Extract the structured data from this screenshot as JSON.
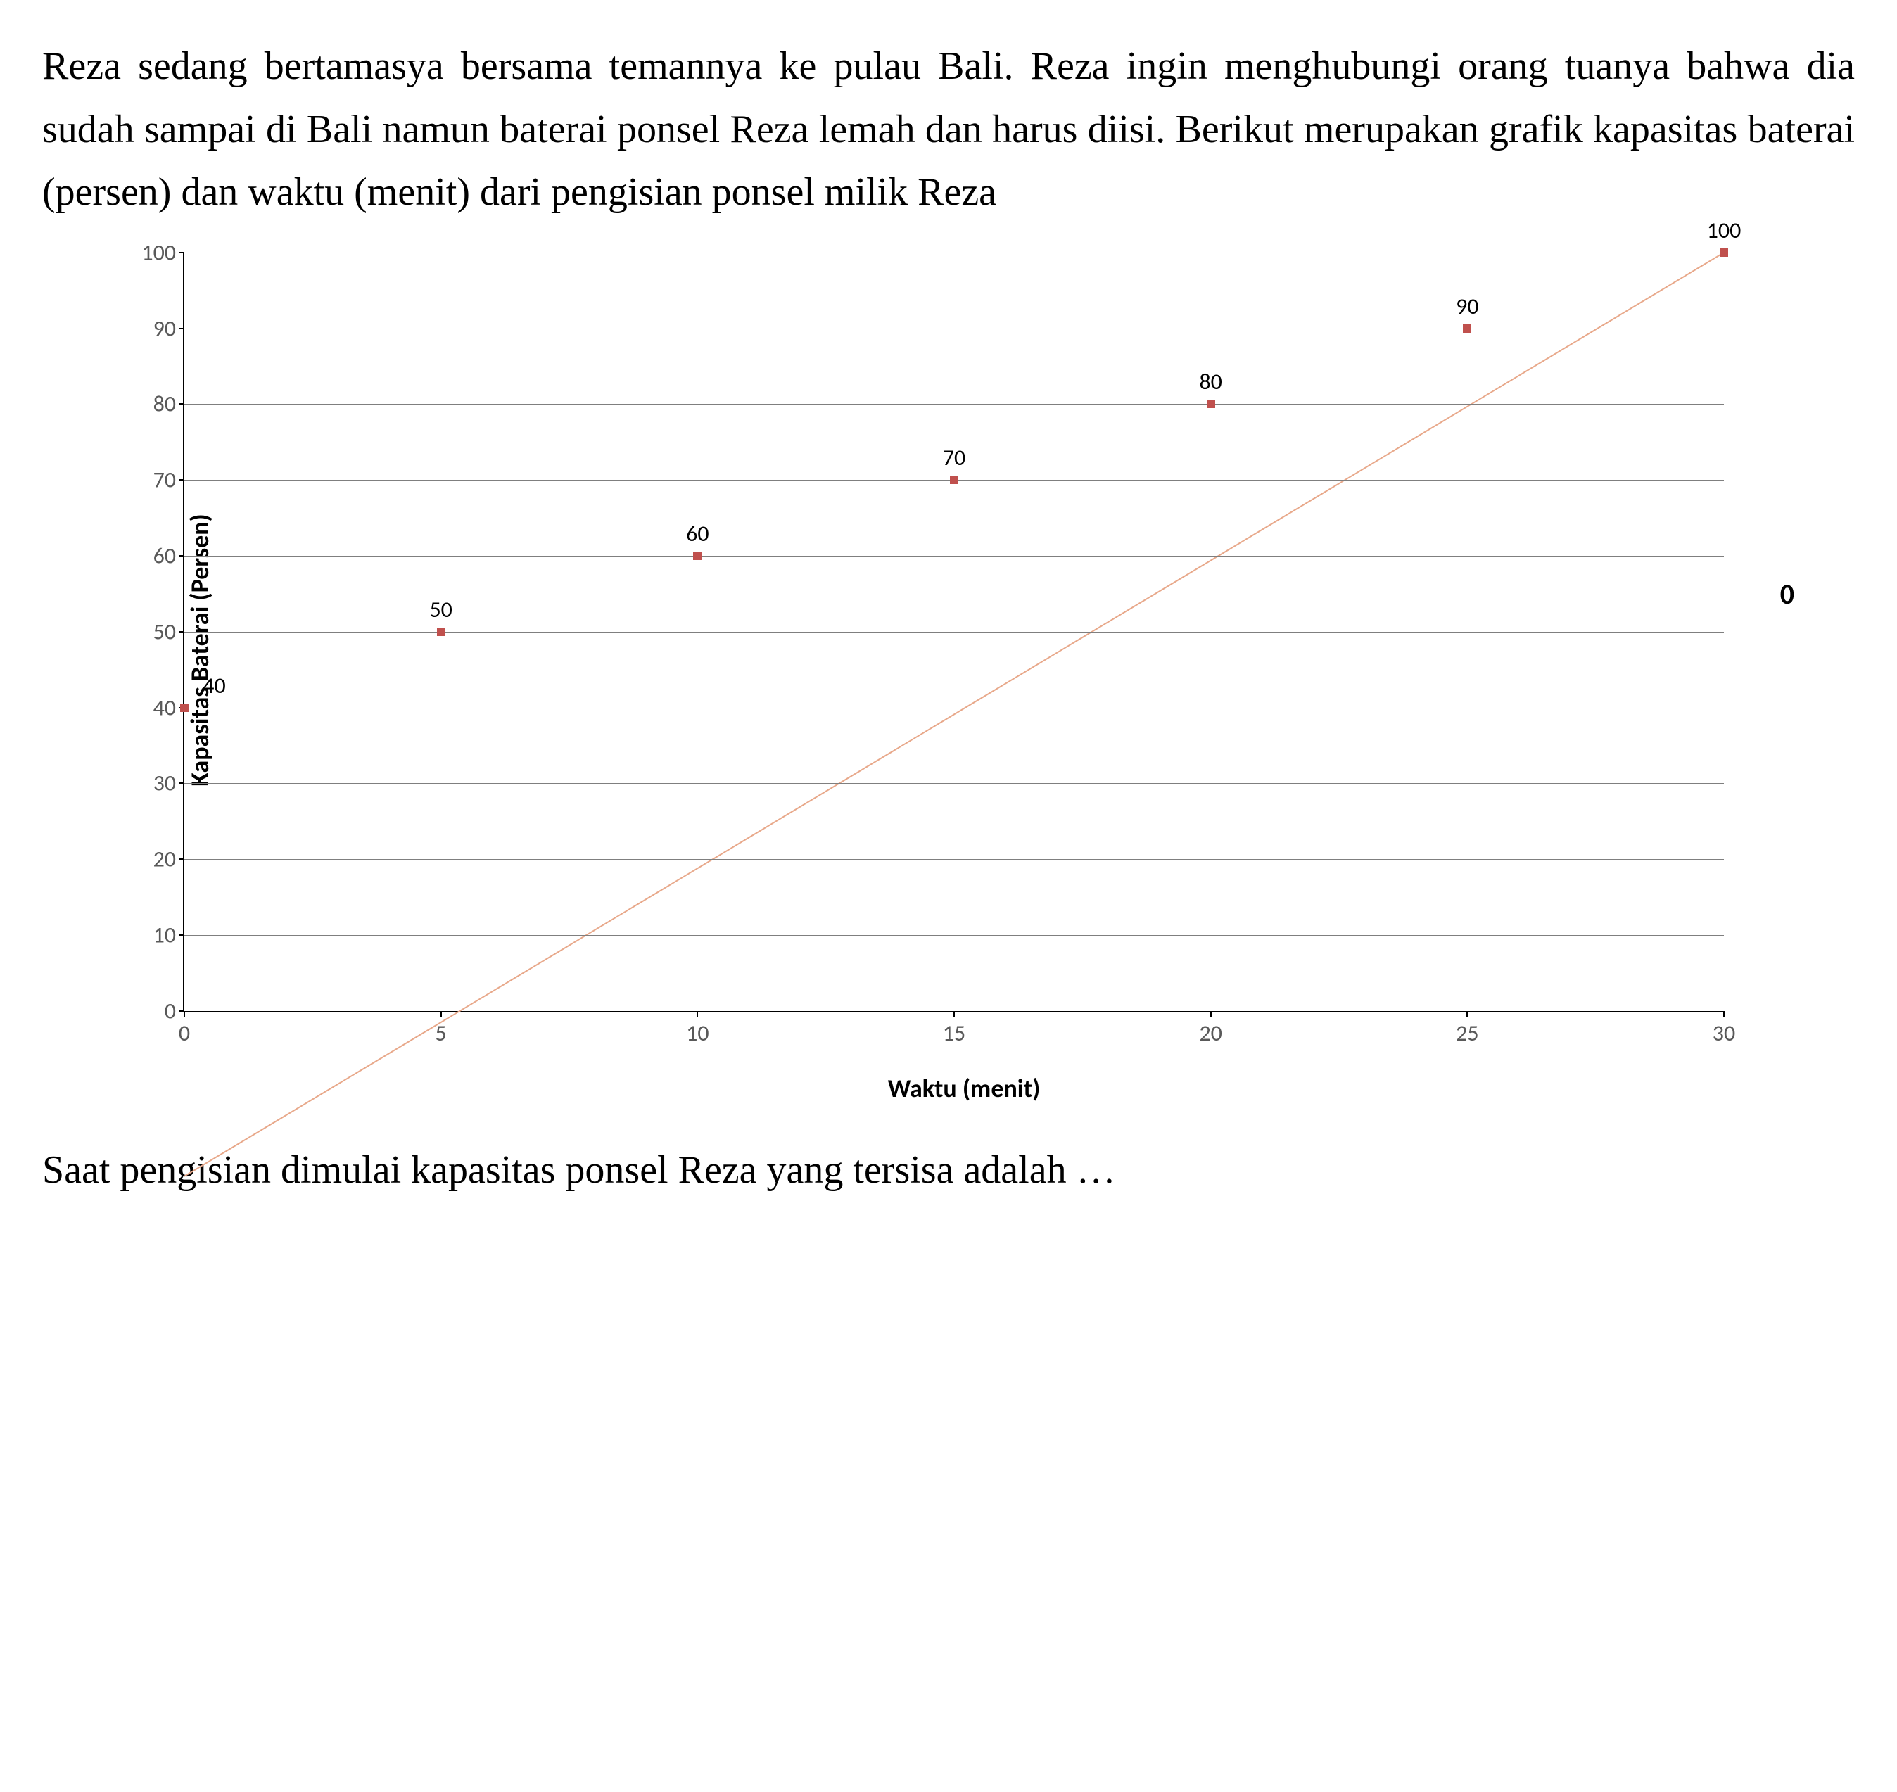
{
  "intro_text": "Reza sedang bertamasya bersama temannya ke pulau Bali. Reza ingin menghubungi orang tuanya bahwa dia sudah sampai di Bali  namun baterai  ponsel  Reza  lemah  dan  harus  diisi.  Berikut merupakan grafik kapasitas baterai (persen) dan waktu (menit) dari pengisian ponsel milik Reza",
  "closing_text": "Saat pengisian dimulai kapasitas ponsel Reza yang tersisa adalah …",
  "chart": {
    "type": "line",
    "x_label": "Waktu (menit)",
    "y_label": "Kapasitas Baterai (Persen)",
    "x_values": [
      0,
      5,
      10,
      15,
      20,
      25,
      30
    ],
    "y_values": [
      40,
      50,
      60,
      70,
      80,
      90,
      100
    ],
    "data_labels": [
      "40",
      "50",
      "60",
      "70",
      "80",
      "90",
      "100"
    ],
    "xlim": [
      0,
      30
    ],
    "ylim": [
      0,
      100
    ],
    "x_ticks": [
      0,
      5,
      10,
      15,
      20,
      25,
      30
    ],
    "y_ticks": [
      0,
      10,
      20,
      30,
      40,
      50,
      60,
      70,
      80,
      90,
      100
    ],
    "line_color": "#e8a88a",
    "marker_fill": "#c0504d",
    "marker_border": "#c0504d",
    "marker_size": 12,
    "line_width": 2,
    "grid_color": "#7f7f7f",
    "background_color": "#ffffff",
    "tick_label_color": "#595959",
    "axis_label_fontsize": 36,
    "tick_fontsize": 32,
    "data_label_fontsize": 32,
    "legend_text": "0"
  }
}
